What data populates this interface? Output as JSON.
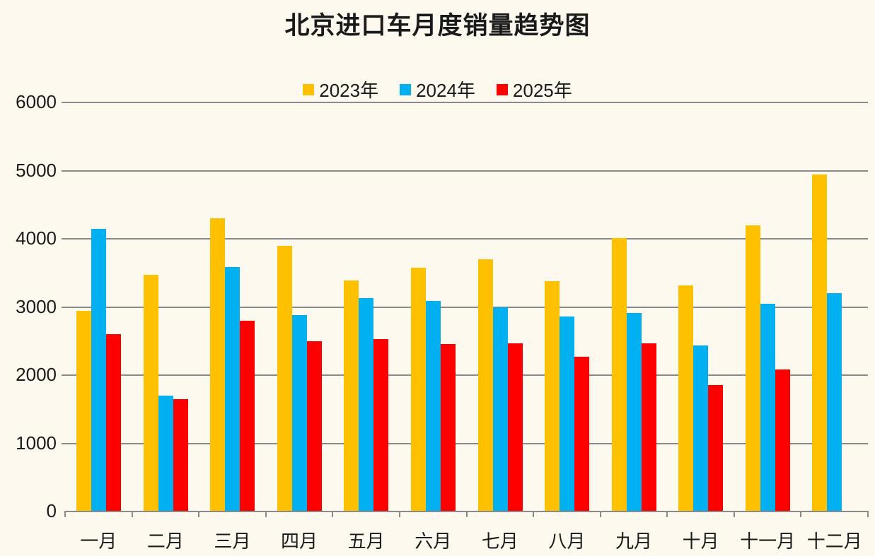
{
  "title": "北京进口车月度销量趋势图",
  "legend": [
    {
      "label": "2023年",
      "color": "#FFC000"
    },
    {
      "label": "2024年",
      "color": "#00B0F0"
    },
    {
      "label": "2025年",
      "color": "#FF0000"
    }
  ],
  "chart_data": {
    "type": "bar",
    "title": "北京进口车月度销量趋势图",
    "categories": [
      "一月",
      "二月",
      "三月",
      "四月",
      "五月",
      "六月",
      "七月",
      "八月",
      "九月",
      "十月",
      "十一月",
      "十二月"
    ],
    "series": [
      {
        "name": "2023年",
        "color": "#FFC000",
        "values": [
          2930,
          3460,
          4290,
          3890,
          3380,
          3570,
          3690,
          3370,
          4000,
          3310,
          4190,
          4930
        ]
      },
      {
        "name": "2024年",
        "color": "#00B0F0",
        "values": [
          4140,
          1690,
          3580,
          2870,
          3120,
          3080,
          2980,
          2850,
          2900,
          2430,
          3040,
          3190
        ]
      },
      {
        "name": "2025年",
        "color": "#FF0000",
        "values": [
          2590,
          1640,
          2790,
          2490,
          2520,
          2450,
          2460,
          2260,
          2460,
          1840,
          2070,
          null
        ]
      }
    ],
    "xlabel": "",
    "ylabel": "",
    "ylim": [
      0,
      6000
    ],
    "ytick_step": 1000,
    "yticks": [
      "0",
      "1000",
      "2000",
      "3000",
      "4000",
      "5000",
      "6000"
    ],
    "grid": true,
    "legend_position": "top"
  },
  "colors": {
    "background": "#FDF9EF",
    "gridline": "#8A8A8A",
    "text": "#1A1A1A"
  }
}
